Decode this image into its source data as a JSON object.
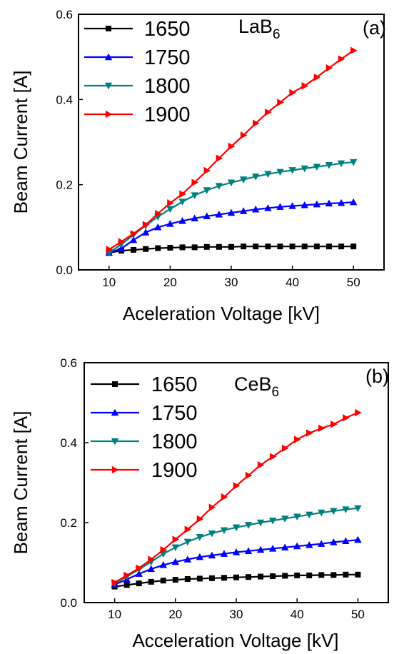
{
  "chart_data": [
    {
      "type": "line",
      "panel_label": "(a)",
      "material": "LaB",
      "material_subscript": "6",
      "xlabel": "Aceleration Voltage [kV]",
      "ylabel": "Beam Current [A]",
      "xlim": [
        5,
        55
      ],
      "ylim": [
        0,
        0.6
      ],
      "xticks": [
        "10",
        "20",
        "30",
        "40",
        "50"
      ],
      "yticks": [
        "0.0",
        "0.2",
        "0.4",
        "0.6"
      ],
      "legend_position": "top-left",
      "x": [
        10,
        12,
        14,
        16,
        18,
        20,
        22,
        24,
        26,
        28,
        30,
        32,
        34,
        36,
        38,
        40,
        42,
        44,
        46,
        48,
        50
      ],
      "series": [
        {
          "name": "1650",
          "color": "#000000",
          "marker": "square",
          "values": [
            0.04,
            0.045,
            0.047,
            0.049,
            0.051,
            0.052,
            0.053,
            0.053,
            0.054,
            0.054,
            0.054,
            0.055,
            0.055,
            0.055,
            0.055,
            0.055,
            0.055,
            0.055,
            0.055,
            0.055,
            0.055
          ]
        },
        {
          "name": "1750",
          "color": "#0000ff",
          "marker": "triangle-up",
          "values": [
            0.04,
            0.05,
            0.07,
            0.088,
            0.1,
            0.108,
            0.115,
            0.121,
            0.126,
            0.13,
            0.134,
            0.138,
            0.142,
            0.145,
            0.148,
            0.15,
            0.152,
            0.154,
            0.156,
            0.157,
            0.159
          ]
        },
        {
          "name": "1800",
          "color": "#00807f",
          "marker": "triangle-down",
          "values": [
            0.04,
            0.06,
            0.082,
            0.104,
            0.125,
            0.143,
            0.16,
            0.175,
            0.187,
            0.197,
            0.205,
            0.212,
            0.219,
            0.225,
            0.23,
            0.234,
            0.238,
            0.242,
            0.246,
            0.25,
            0.253
          ]
        },
        {
          "name": "1900",
          "color": "#ff0000",
          "marker": "triangle-right",
          "values": [
            0.048,
            0.066,
            0.085,
            0.106,
            0.132,
            0.157,
            0.178,
            0.205,
            0.233,
            0.262,
            0.29,
            0.316,
            0.344,
            0.37,
            0.393,
            0.416,
            0.432,
            0.452,
            0.474,
            0.495,
            0.515
          ]
        }
      ]
    },
    {
      "type": "line",
      "panel_label": "(b)",
      "material": "CeB",
      "material_subscript": "6",
      "xlabel": "Acceleration Voltage [kV]",
      "ylabel": "Beam Current [A]",
      "xlim": [
        5,
        55
      ],
      "ylim": [
        0,
        0.6
      ],
      "xticks": [
        "10",
        "20",
        "30",
        "40",
        "50"
      ],
      "yticks": [
        "0.0",
        "0.2",
        "0.4",
        "0.6"
      ],
      "legend_position": "top-left",
      "x": [
        10,
        12,
        14,
        16,
        18,
        20,
        22,
        24,
        26,
        28,
        30,
        32,
        34,
        36,
        38,
        40,
        42,
        44,
        46,
        48,
        50
      ],
      "series": [
        {
          "name": "1650",
          "color": "#000000",
          "marker": "square",
          "values": [
            0.04,
            0.044,
            0.048,
            0.052,
            0.055,
            0.057,
            0.059,
            0.06,
            0.061,
            0.062,
            0.063,
            0.064,
            0.065,
            0.066,
            0.067,
            0.068,
            0.068,
            0.069,
            0.069,
            0.07,
            0.07
          ]
        },
        {
          "name": "1750",
          "color": "#0000ff",
          "marker": "triangle-up",
          "values": [
            0.045,
            0.058,
            0.072,
            0.084,
            0.094,
            0.102,
            0.108,
            0.114,
            0.118,
            0.122,
            0.126,
            0.129,
            0.132,
            0.135,
            0.138,
            0.141,
            0.144,
            0.147,
            0.151,
            0.154,
            0.157
          ]
        },
        {
          "name": "1800",
          "color": "#00807f",
          "marker": "triangle-down",
          "values": [
            0.048,
            0.065,
            0.083,
            0.102,
            0.122,
            0.138,
            0.152,
            0.164,
            0.173,
            0.181,
            0.188,
            0.194,
            0.2,
            0.205,
            0.21,
            0.215,
            0.22,
            0.225,
            0.229,
            0.233,
            0.236
          ]
        },
        {
          "name": "1900",
          "color": "#ff0000",
          "marker": "triangle-right",
          "values": [
            0.05,
            0.068,
            0.086,
            0.108,
            0.132,
            0.158,
            0.183,
            0.209,
            0.238,
            0.264,
            0.292,
            0.318,
            0.344,
            0.365,
            0.386,
            0.408,
            0.424,
            0.436,
            0.446,
            0.462,
            0.475
          ]
        }
      ]
    }
  ]
}
